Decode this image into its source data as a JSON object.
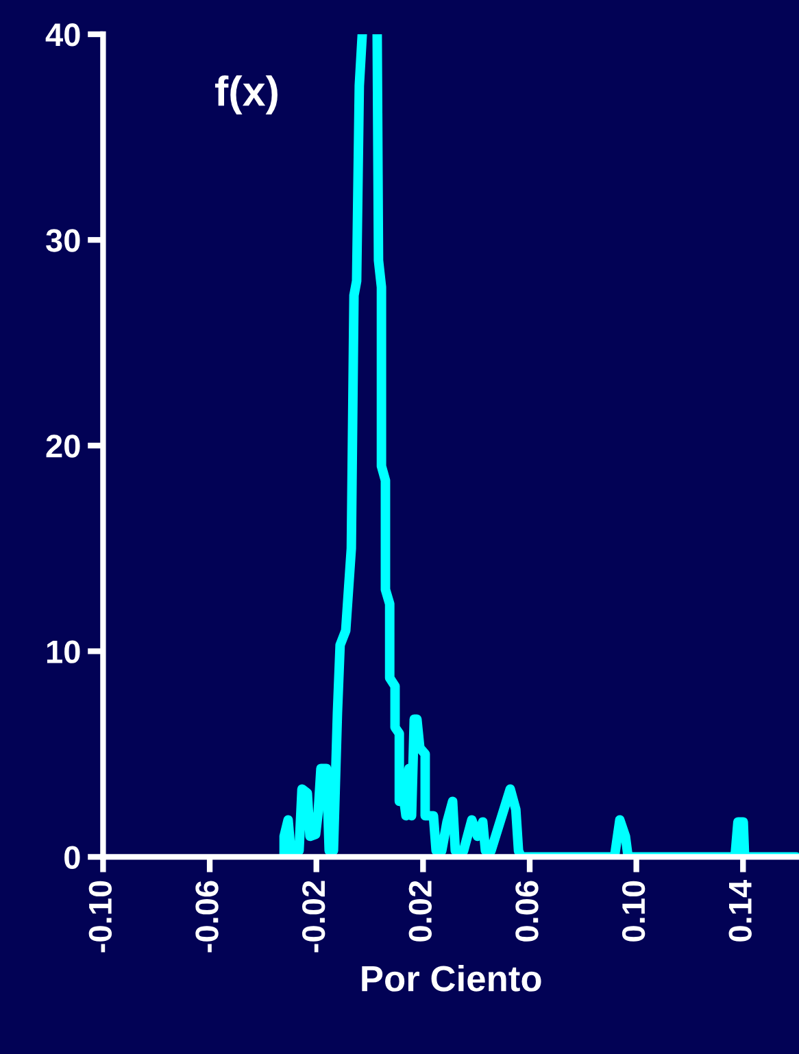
{
  "chart_data": {
    "type": "line",
    "xlabel": "Por Ciento",
    "annotations": [
      "f(x)"
    ],
    "xlim": [
      -0.1,
      0.161
    ],
    "ylim": [
      0,
      40
    ],
    "xticks": [
      {
        "value": -0.1,
        "label": "-0.10"
      },
      {
        "value": -0.06,
        "label": "-0.06"
      },
      {
        "value": -0.02,
        "label": "-0.02"
      },
      {
        "value": 0.02,
        "label": "0.02"
      },
      {
        "value": 0.06,
        "label": "0.06"
      },
      {
        "value": 0.1,
        "label": "0.10"
      },
      {
        "value": 0.14,
        "label": "0.14"
      }
    ],
    "yticks": [
      0,
      10,
      20,
      30,
      40
    ],
    "grid": false,
    "legend": false,
    "marker": "none",
    "line_style": "solid",
    "series": [
      {
        "color": "#00ffff",
        "x": [
          -0.0321,
          -0.0321,
          -0.0306,
          -0.0296,
          -0.0265,
          -0.0254,
          -0.0234,
          -0.0224,
          -0.0203,
          -0.0193,
          -0.0183,
          -0.0162,
          -0.0152,
          -0.0136,
          -0.0121,
          -0.0111,
          -0.009,
          -0.0069,
          -0.0059,
          -0.0049,
          -0.0039,
          -0.0028,
          0.0,
          0.0028,
          0.0033,
          0.0044,
          0.0044,
          0.0059,
          0.0059,
          0.0075,
          0.0075,
          0.0095,
          0.0095,
          0.0111,
          0.0111,
          0.0126,
          0.0136,
          0.0147,
          0.0157,
          0.0167,
          0.0177,
          0.0188,
          0.0208,
          0.0208,
          0.0239,
          0.0249,
          0.027,
          0.029,
          0.0311,
          0.0321,
          0.0352,
          0.0383,
          0.0404,
          0.0424,
          0.0434,
          0.0455,
          0.0527,
          0.0548,
          0.0558,
          0.0568,
          0.0918,
          0.0938,
          0.0959,
          0.0969,
          0.137,
          0.1381,
          0.1401,
          0.1406,
          0.16
        ],
        "values": [
          0,
          1,
          1.8,
          0.3,
          0.3,
          3.3,
          3.1,
          1,
          1.1,
          2.2,
          4.3,
          4.3,
          0.3,
          0.3,
          7,
          10.3,
          11,
          15,
          27.3,
          28,
          37.5,
          40,
          null,
          40,
          29,
          27.7,
          19,
          18.3,
          13,
          12.3,
          8.7,
          8.3,
          6.3,
          6,
          2.7,
          3,
          2,
          4.3,
          2,
          6.7,
          6.7,
          5.3,
          5,
          2,
          2,
          0.3,
          0.3,
          1.7,
          2.7,
          0.3,
          0.3,
          1.8,
          1,
          1.7,
          0.3,
          0.3,
          3.3,
          2.3,
          0.3,
          0,
          0,
          1.8,
          1,
          0,
          0,
          1.7,
          1.7,
          0,
          0
        ]
      }
    ]
  }
}
